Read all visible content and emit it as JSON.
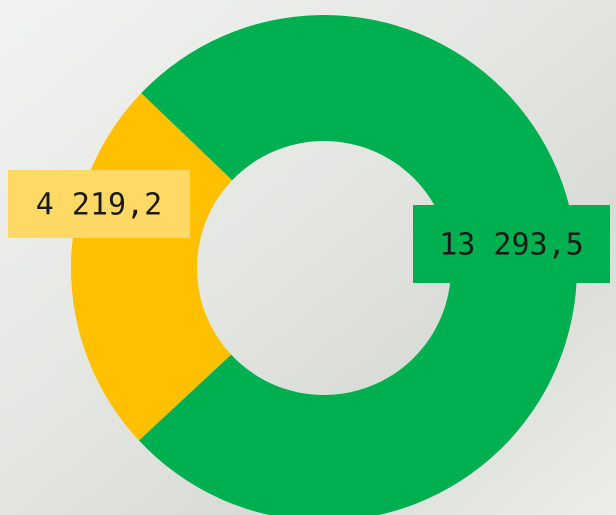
{
  "chart_data": {
    "type": "donut",
    "categories": [
      "4 219,2",
      "13 293,5"
    ],
    "values": [
      4219.2,
      13293.5
    ],
    "value_labels": [
      "4 219,2",
      "13 293,5"
    ],
    "colors": [
      "#ffc000",
      "#00b050"
    ],
    "label_colors": [
      "#ffd966",
      "#00b050"
    ]
  }
}
